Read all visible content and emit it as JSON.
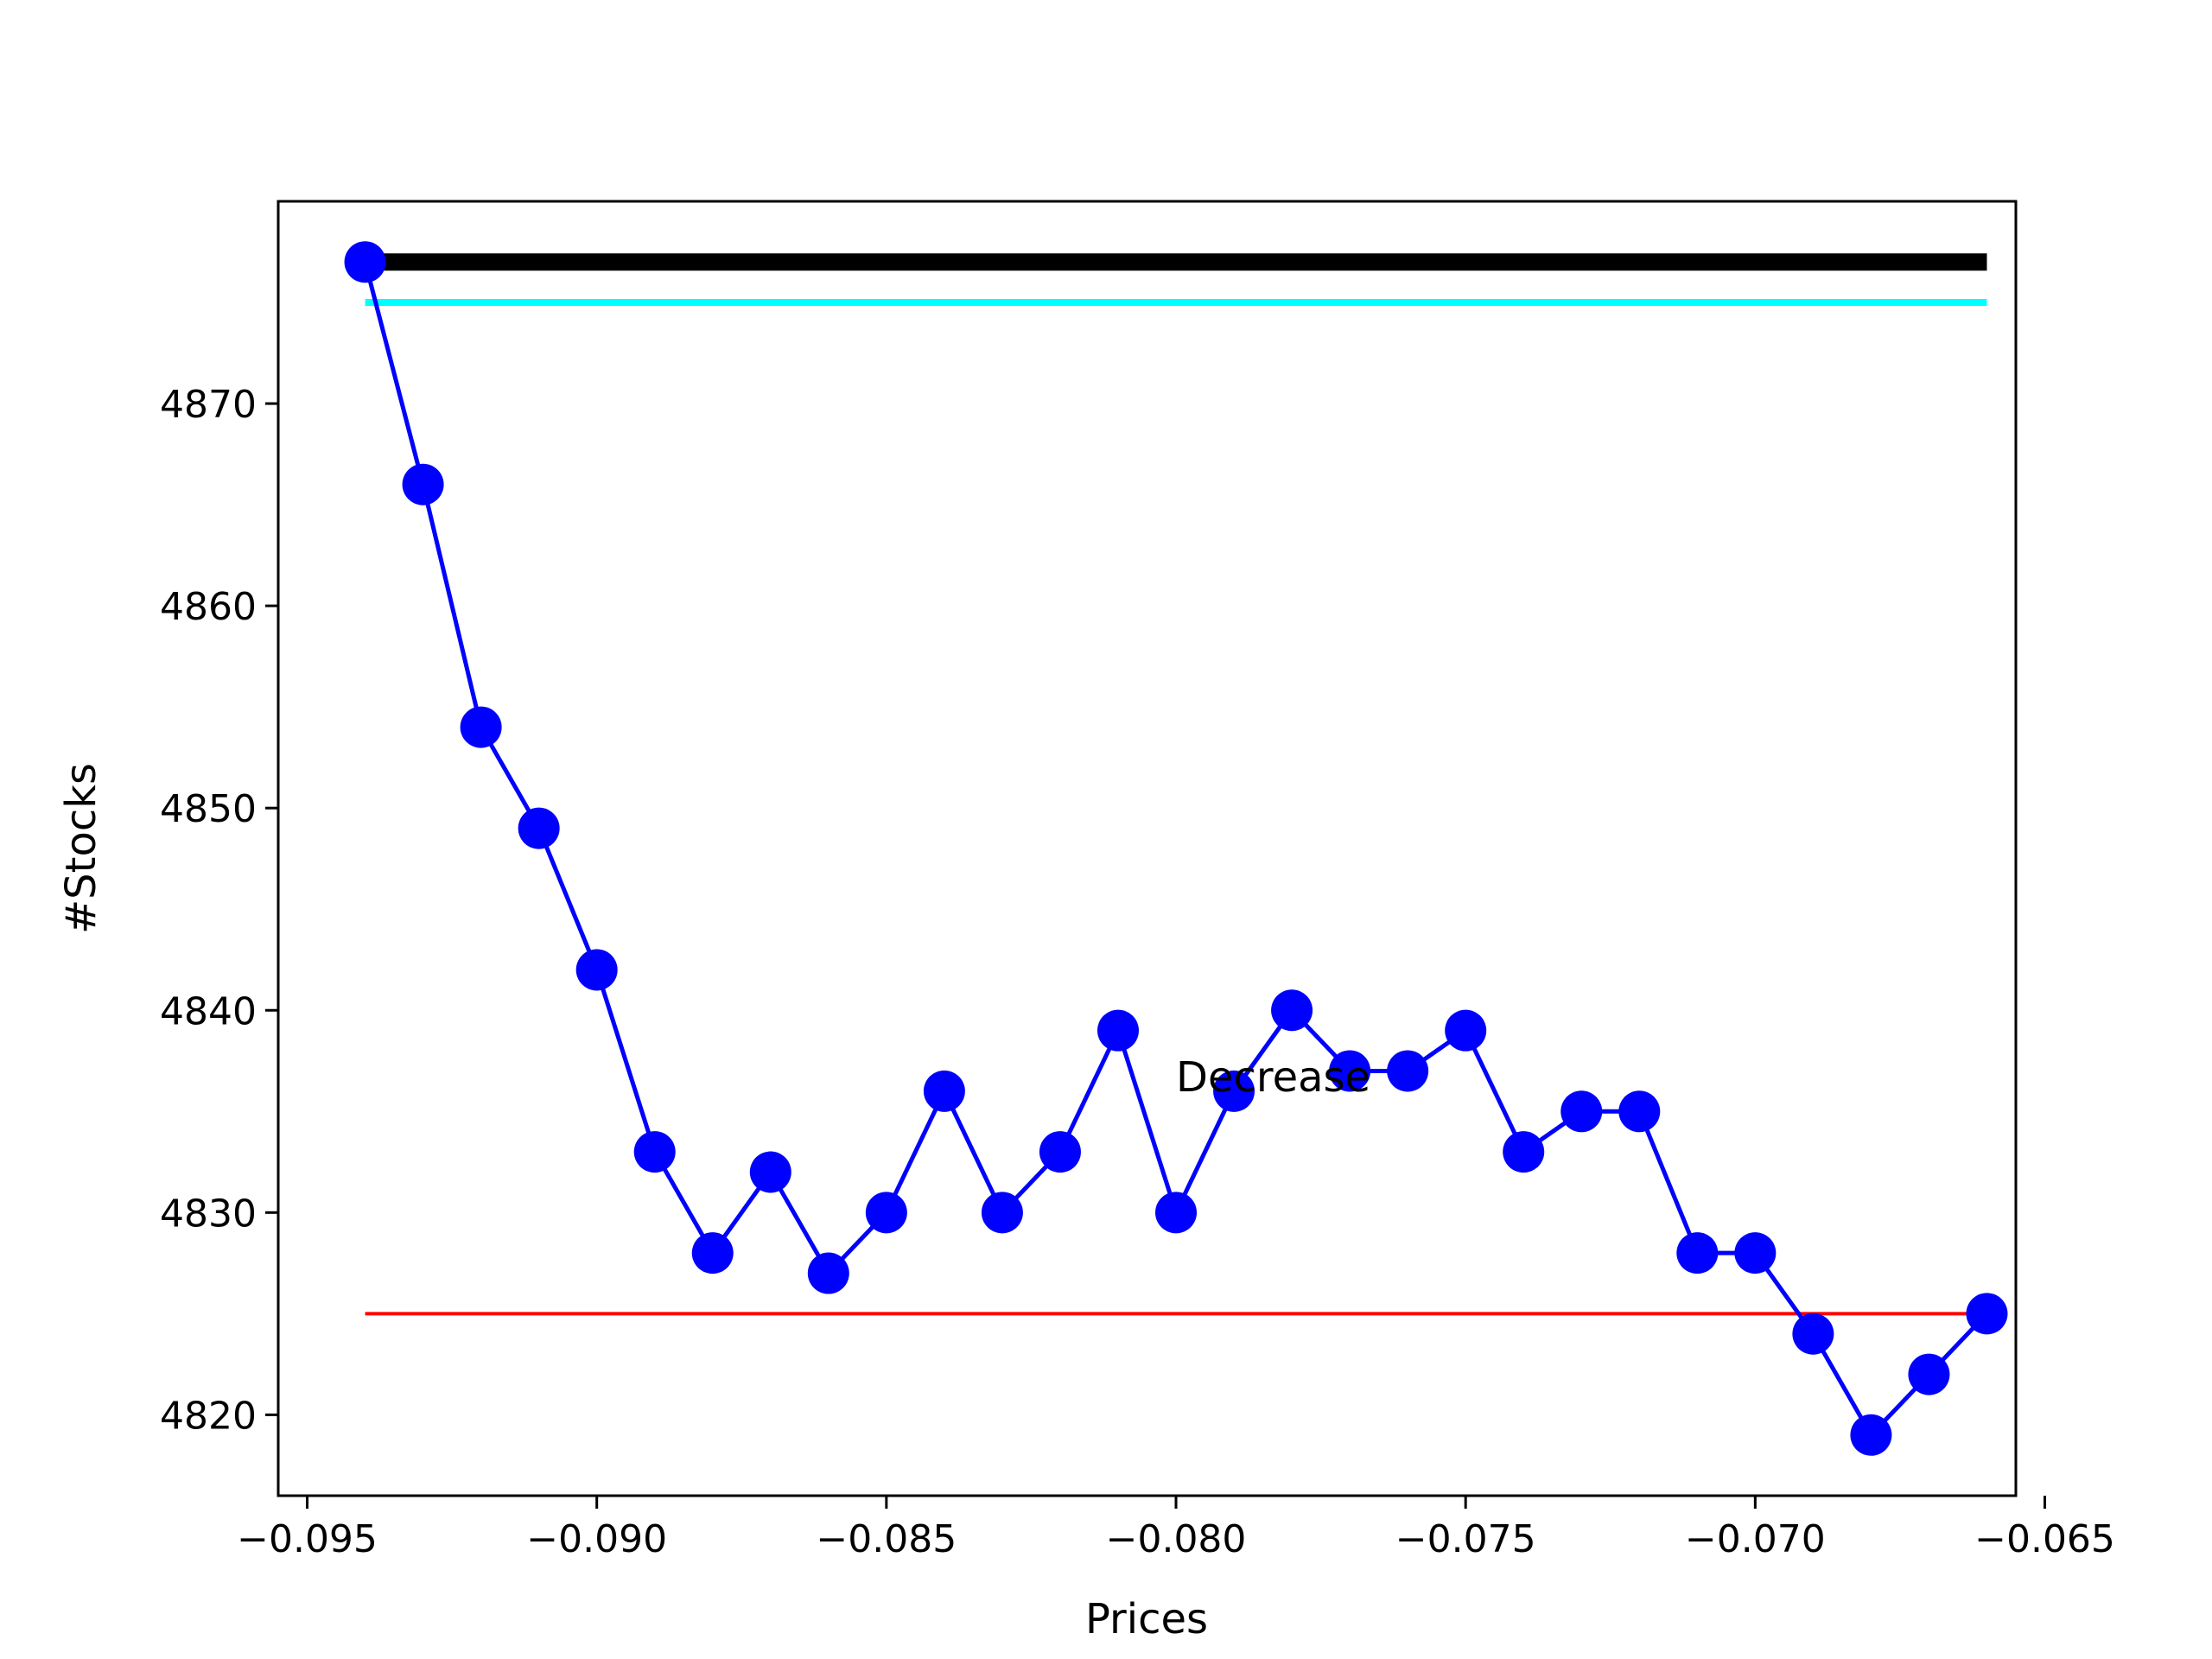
{
  "chart_data": {
    "type": "line",
    "title": "",
    "xlabel": "Prices",
    "ylabel": "#Stocks",
    "xlim": [
      -0.0955,
      -0.0655
    ],
    "ylim": [
      4816,
      4880
    ],
    "xticks": [
      -0.095,
      -0.09,
      -0.085,
      -0.08,
      -0.075,
      -0.07,
      -0.065
    ],
    "xtick_labels": [
      "−0.095",
      "−0.090",
      "−0.085",
      "−0.080",
      "−0.075",
      "−0.070",
      "−0.065"
    ],
    "yticks": [
      4820,
      4830,
      4840,
      4850,
      4860,
      4870
    ],
    "ytick_labels": [
      "4820",
      "4830",
      "4840",
      "4850",
      "4860",
      "4870"
    ],
    "grid": false,
    "series": [
      {
        "color": "#0000ff",
        "marker": "circle",
        "x": [
          -0.094,
          -0.093,
          -0.092,
          -0.091,
          -0.09,
          -0.089,
          -0.088,
          -0.087,
          -0.086,
          -0.085,
          -0.084,
          -0.083,
          -0.082,
          -0.081,
          -0.08,
          -0.079,
          -0.078,
          -0.077,
          -0.076,
          -0.075,
          -0.074,
          -0.073,
          -0.072,
          -0.071,
          -0.07,
          -0.069,
          -0.068,
          -0.067,
          -0.066
        ],
        "y": [
          4877,
          4866,
          4854,
          4849,
          4842,
          4833,
          4828,
          4832,
          4827,
          4830,
          4836,
          4830,
          4833,
          4839,
          4830,
          4836,
          4840,
          4837,
          4837,
          4839,
          4833,
          4835,
          4835,
          4828,
          4828,
          4824,
          4819,
          4822,
          4825
        ]
      }
    ],
    "hlines": [
      {
        "y": 4877,
        "xmin": -0.094,
        "xmax": -0.066,
        "color": "#000000",
        "weight": "heavy"
      },
      {
        "y": 4875,
        "xmin": -0.094,
        "xmax": -0.066,
        "color": "#00ffff",
        "weight": "medium"
      },
      {
        "y": 4825,
        "xmin": -0.094,
        "xmax": -0.066,
        "color": "#ff0000",
        "weight": "thin"
      }
    ],
    "annotations": [
      {
        "text": "Decrease",
        "x": -0.08,
        "y": 4836
      }
    ]
  }
}
